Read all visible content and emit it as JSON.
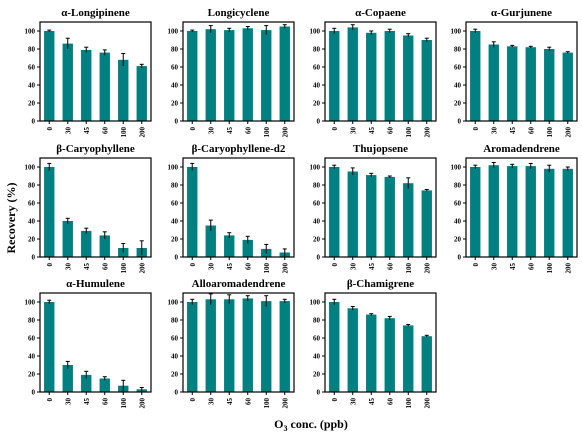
{
  "figure": {
    "ylabel": "Recovery (%)",
    "xlabel_prefix": "O",
    "xlabel_subscript": "3",
    "xlabel_suffix": " conc. (ppb)"
  },
  "colors": {
    "bar": "#008080",
    "error": "#000000",
    "axis": "#000000"
  },
  "chart_data": [
    {
      "type": "bar",
      "title": "α-Longipinene",
      "categories": [
        "0",
        "30",
        "45",
        "60",
        "100",
        "200"
      ],
      "values": [
        100,
        86,
        79,
        76,
        68,
        61
      ],
      "errors": [
        1,
        6,
        3,
        3,
        7,
        2
      ],
      "ylim": [
        0,
        110
      ],
      "yticks": [
        0,
        20,
        40,
        60,
        80,
        100
      ]
    },
    {
      "type": "bar",
      "title": "Longicyclene",
      "categories": [
        "0",
        "30",
        "45",
        "60",
        "100",
        "200"
      ],
      "values": [
        100,
        102,
        101,
        103,
        101,
        105
      ],
      "errors": [
        1,
        4,
        2,
        2,
        5,
        2
      ],
      "ylim": [
        0,
        110
      ],
      "yticks": [
        0,
        20,
        40,
        60,
        80,
        100
      ]
    },
    {
      "type": "bar",
      "title": "α-Copaene",
      "categories": [
        "0",
        "30",
        "45",
        "60",
        "100",
        "200"
      ],
      "values": [
        100,
        104,
        98,
        100,
        95,
        90
      ],
      "errors": [
        3,
        3,
        2,
        2,
        2,
        2
      ],
      "ylim": [
        0,
        110
      ],
      "yticks": [
        0,
        20,
        40,
        60,
        80,
        100
      ]
    },
    {
      "type": "bar",
      "title": "α-Gurjunene",
      "categories": [
        "0",
        "30",
        "45",
        "60",
        "100",
        "200"
      ],
      "values": [
        100,
        85,
        83,
        82,
        80,
        76
      ],
      "errors": [
        2,
        3,
        1,
        1,
        2,
        1
      ],
      "ylim": [
        0,
        110
      ],
      "yticks": [
        0,
        20,
        40,
        60,
        80,
        100
      ]
    },
    {
      "type": "bar",
      "title": "β-Caryophyllene",
      "categories": [
        "0",
        "30",
        "45",
        "60",
        "100",
        "200"
      ],
      "values": [
        100,
        40,
        29,
        24,
        10,
        10
      ],
      "errors": [
        4,
        3,
        3,
        4,
        5,
        8
      ],
      "ylim": [
        0,
        110
      ],
      "yticks": [
        0,
        20,
        40,
        60,
        80,
        100
      ]
    },
    {
      "type": "bar",
      "title": "β-Caryophyllene-d2",
      "categories": [
        "0",
        "30",
        "45",
        "60",
        "100",
        "200"
      ],
      "values": [
        100,
        35,
        24,
        19,
        9,
        5
      ],
      "errors": [
        4,
        6,
        3,
        4,
        5,
        4
      ],
      "ylim": [
        0,
        110
      ],
      "yticks": [
        0,
        20,
        40,
        60,
        80,
        100
      ]
    },
    {
      "type": "bar",
      "title": "Thujopsene",
      "categories": [
        "0",
        "30",
        "45",
        "60",
        "100",
        "200"
      ],
      "values": [
        100,
        95,
        91,
        89,
        82,
        74
      ],
      "errors": [
        2,
        4,
        2,
        1,
        6,
        1
      ],
      "ylim": [
        0,
        110
      ],
      "yticks": [
        0,
        20,
        40,
        60,
        80,
        100
      ]
    },
    {
      "type": "bar",
      "title": "Aromadendrene",
      "categories": [
        "0",
        "30",
        "45",
        "60",
        "100",
        "200"
      ],
      "values": [
        100,
        102,
        101,
        101,
        98,
        98
      ],
      "errors": [
        2,
        3,
        2,
        3,
        4,
        2
      ],
      "ylim": [
        0,
        110
      ],
      "yticks": [
        0,
        20,
        40,
        60,
        80,
        100
      ]
    },
    {
      "type": "bar",
      "title": "α-Humulene",
      "categories": [
        "0",
        "30",
        "45",
        "60",
        "100",
        "200"
      ],
      "values": [
        100,
        30,
        19,
        15,
        7,
        3
      ],
      "errors": [
        2,
        4,
        4,
        2,
        6,
        2
      ],
      "ylim": [
        0,
        110
      ],
      "yticks": [
        0,
        20,
        40,
        60,
        80,
        100
      ]
    },
    {
      "type": "bar",
      "title": "Alloaromadendrene",
      "categories": [
        "0",
        "30",
        "45",
        "60",
        "100",
        "200"
      ],
      "values": [
        100,
        103,
        103,
        104,
        101,
        101
      ],
      "errors": [
        3,
        6,
        5,
        3,
        6,
        2
      ],
      "ylim": [
        0,
        110
      ],
      "yticks": [
        0,
        20,
        40,
        60,
        80,
        100
      ]
    },
    {
      "type": "bar",
      "title": "β-Chamigrene",
      "categories": [
        "0",
        "30",
        "45",
        "60",
        "100",
        "200"
      ],
      "values": [
        100,
        93,
        86,
        82,
        74,
        62
      ],
      "errors": [
        3,
        2,
        1,
        2,
        1,
        1
      ],
      "ylim": [
        0,
        110
      ],
      "yticks": [
        0,
        20,
        40,
        60,
        80,
        100
      ]
    }
  ]
}
